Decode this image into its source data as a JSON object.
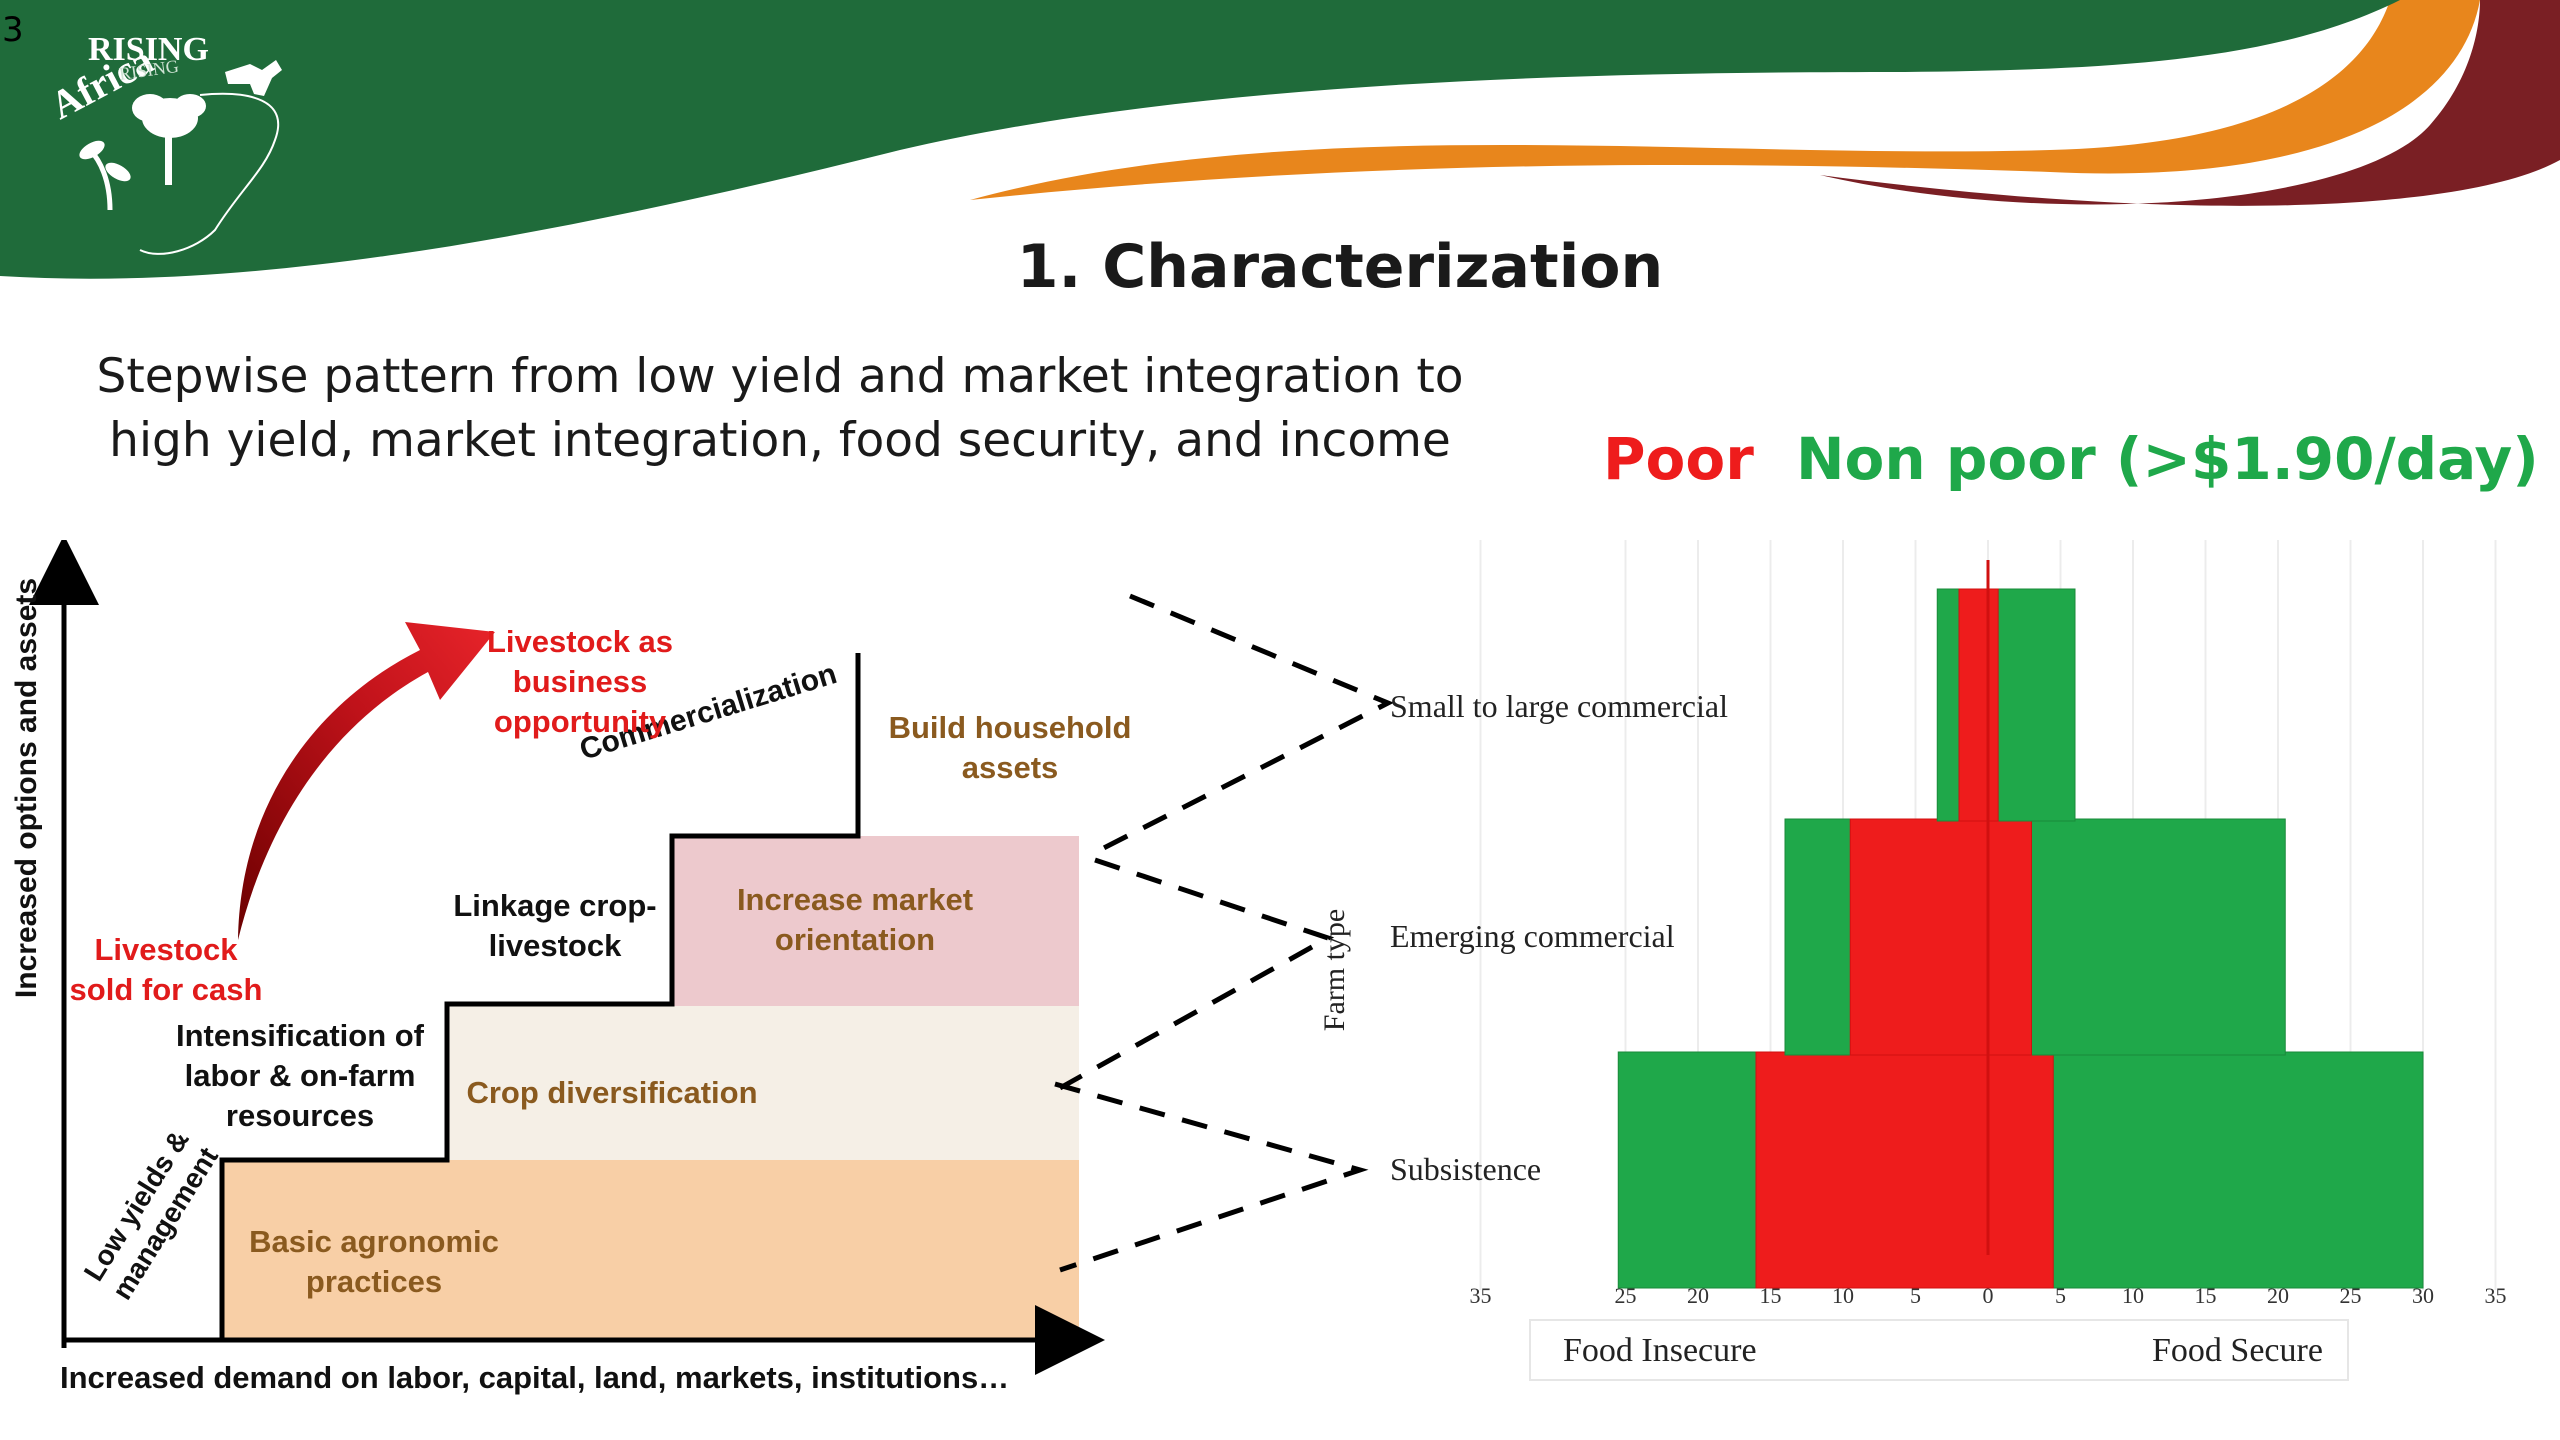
{
  "slide": {
    "number": "3",
    "logo_text": "Africa RISING",
    "title": "1. Characterization",
    "subtitle_line1": "Stepwise pattern from low yield and market integration to",
    "subtitle_line2": "high yield, market integration, food security, and income",
    "colors": {
      "green_band": "#1f6b3a",
      "orange_band": "#e8861c",
      "maroon_band": "#7a1f24"
    }
  },
  "legend": {
    "poor": "Poor",
    "non_poor": "Non poor (>$1.90/day)",
    "poor_color": "#ee1c1c",
    "non_poor_color": "#1fa84a"
  },
  "stairs": {
    "y_axis_label": "Increased options and assets",
    "x_axis_label": "Increased demand on labor, capital, land, markets, institutions…",
    "steps": [
      {
        "label": "Basic agronomic practices",
        "color": "#f8cfa6"
      },
      {
        "label": "Crop diversification",
        "color": "#f5efe6"
      },
      {
        "label": "Increase market orientation",
        "color": "#edc9cd"
      }
    ],
    "riser_labels": {
      "low": "Low yields & management",
      "intensification": "Intensification of labor & on-farm resources",
      "linkage": "Linkage crop-livestock",
      "commercialization": "Commercialization",
      "build": "Build household assets"
    },
    "livestock_cash": "Livestock sold for cash",
    "livestock_business": "Livestock as business opportunity"
  },
  "chart_data": {
    "type": "bar",
    "orientation": "horizontal",
    "y_axis_title": "Farm type",
    "categories": [
      "Subsistence",
      "Emerging commercial",
      "Small to large commercial"
    ],
    "series": [
      {
        "name": "Poor",
        "color": "#ee1c1c",
        "food_insecure": [
          16,
          9.5,
          2
        ],
        "food_secure": [
          4.5,
          3,
          0.7
        ]
      },
      {
        "name": "Non poor (>$1.90/day)",
        "color": "#1fa84a",
        "food_insecure": [
          25.5,
          14,
          3.5
        ],
        "food_secure": [
          30,
          20.5,
          6
        ]
      }
    ],
    "x_ticks": [
      "35",
      "25",
      "20",
      "15",
      "10",
      "5",
      "0",
      "5",
      "10",
      "15",
      "20",
      "25",
      "30",
      "35"
    ],
    "x_range": [
      -35,
      35
    ],
    "left_label": "Food Insecure",
    "right_label": "Food Secure",
    "grid": true
  }
}
